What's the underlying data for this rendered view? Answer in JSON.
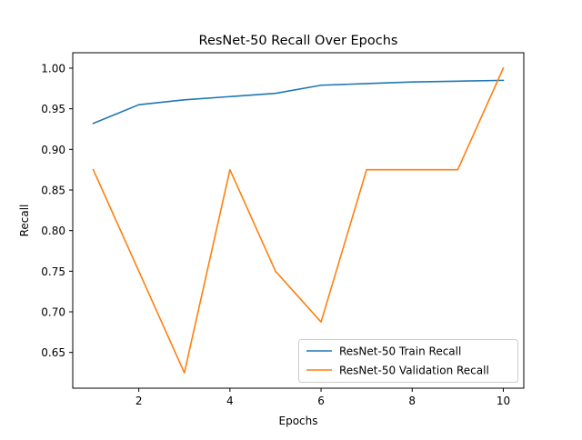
{
  "chart_data": {
    "type": "line",
    "title": "ResNet-50 Recall Over Epochs",
    "xlabel": "Epochs",
    "ylabel": "Recall",
    "x": [
      1,
      2,
      3,
      4,
      5,
      6,
      7,
      8,
      9,
      10
    ],
    "xlim": [
      0.55,
      10.45
    ],
    "ylim": [
      0.606,
      1.019
    ],
    "xticks": [
      2,
      4,
      6,
      8,
      10
    ],
    "xtick_labels": [
      "2",
      "4",
      "6",
      "8",
      "10"
    ],
    "yticks": [
      0.65,
      0.7,
      0.75,
      0.8,
      0.85,
      0.9,
      0.95,
      1.0
    ],
    "ytick_labels": [
      "0.65",
      "0.70",
      "0.75",
      "0.80",
      "0.85",
      "0.90",
      "0.95",
      "1.00"
    ],
    "grid": false,
    "legend_position": "lower-right",
    "series": [
      {
        "name": "ResNet-50 Train Recall",
        "color": "#1f77b4",
        "values": [
          0.932,
          0.955,
          0.961,
          0.965,
          0.969,
          0.979,
          0.981,
          0.983,
          0.984,
          0.985
        ]
      },
      {
        "name": "ResNet-50 Validation Recall",
        "color": "#ff7f0e",
        "values": [
          0.875,
          0.75,
          0.625,
          0.875,
          0.75,
          0.6875,
          0.875,
          0.875,
          0.875,
          1.0
        ]
      }
    ]
  }
}
